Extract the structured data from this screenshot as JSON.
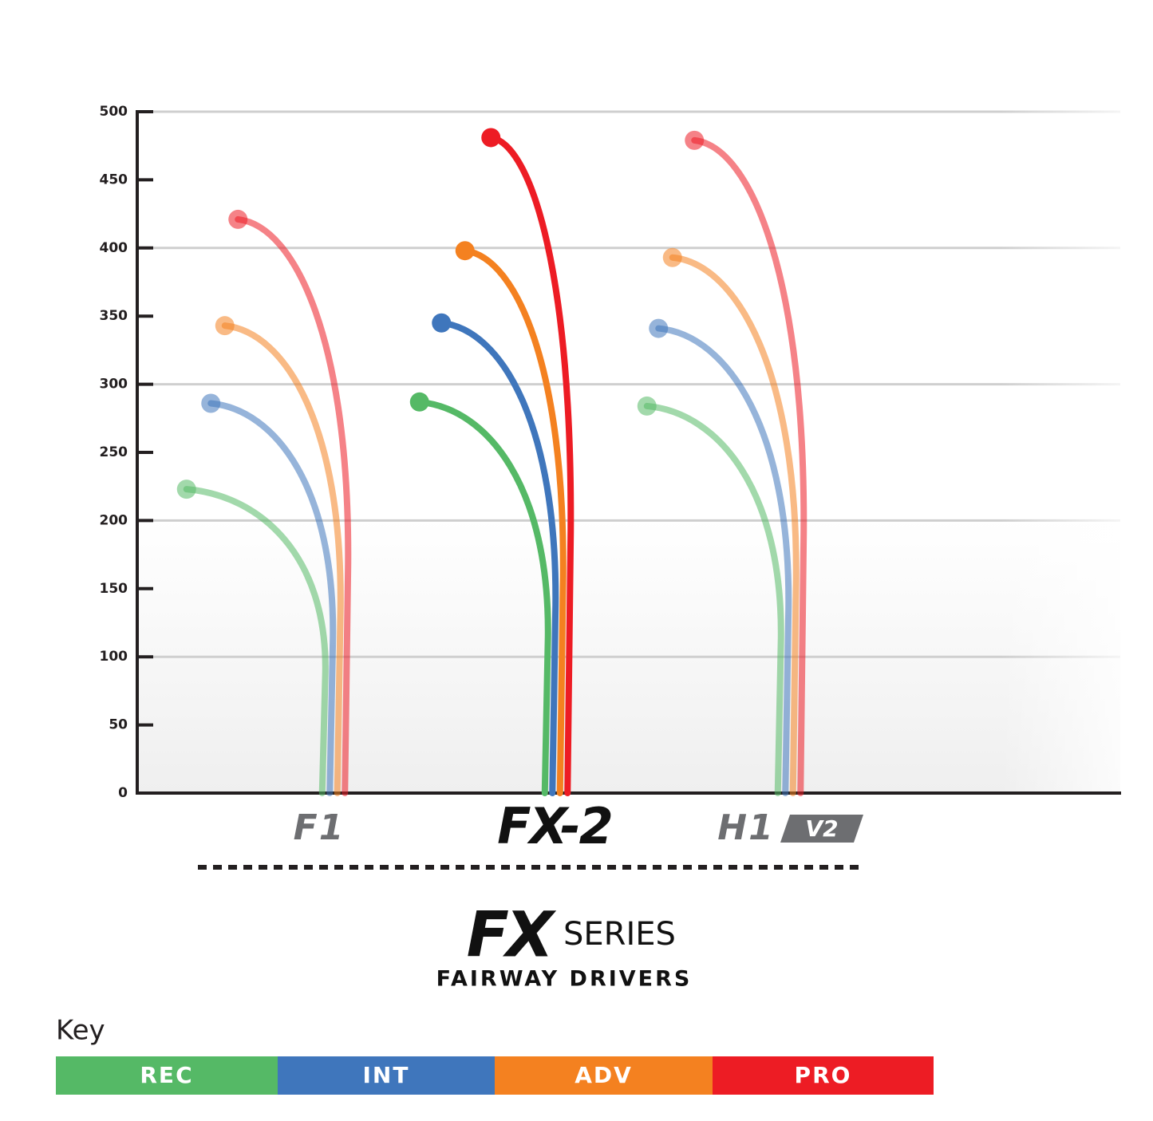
{
  "chart_data": {
    "type": "flight",
    "y_label": null,
    "categories": [
      "F1",
      "FX-2",
      "H1"
    ],
    "category_badges": [
      null,
      null,
      "V2"
    ],
    "highlight": "FX-2",
    "series": [
      {
        "name": "REC",
        "color": "#55b966",
        "values": [
          223,
          287,
          284
        ]
      },
      {
        "name": "INT",
        "color": "#3f76bc",
        "values": [
          286,
          345,
          341
        ]
      },
      {
        "name": "ADV",
        "color": "#f48120",
        "values": [
          343,
          398,
          393
        ]
      },
      {
        "name": "PRO",
        "color": "#ed1c24",
        "values": [
          421,
          481,
          479
        ]
      }
    ],
    "ylim": [
      0,
      500
    ],
    "yticks": [
      0,
      50,
      100,
      150,
      200,
      250,
      300,
      350,
      400,
      450,
      500
    ],
    "grid": true,
    "title_mark": "FX",
    "title": "SERIES",
    "subtitle": "FAIRWAY DRIVERS",
    "legend_title": "Key"
  }
}
